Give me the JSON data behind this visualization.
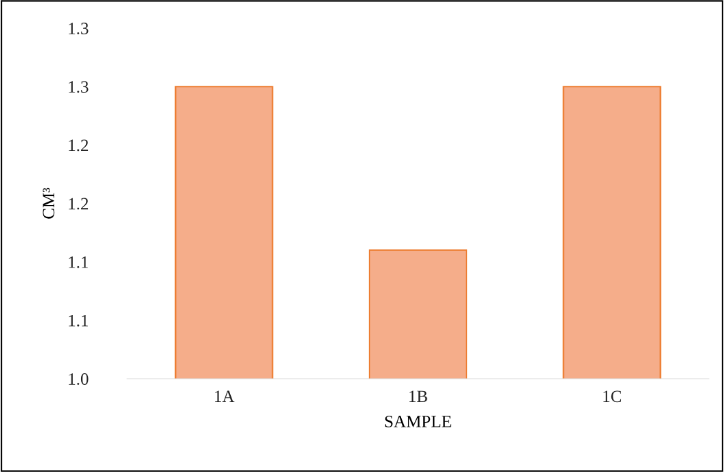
{
  "chart_data": {
    "type": "bar",
    "xlabel": "SAMPLE",
    "ylabel": "CM³",
    "categories": [
      "1A",
      "1B",
      "1C"
    ],
    "values": [
      1.25,
      1.11,
      1.25
    ],
    "color": "#f5ad8a",
    "ylim": [
      1.0,
      1.3
    ],
    "yticks": [
      {
        "value": 1.0,
        "label": "1.0"
      },
      {
        "value": 1.05,
        "label": "1.1"
      },
      {
        "value": 1.1,
        "label": "1.1"
      },
      {
        "value": 1.15,
        "label": "1.2"
      },
      {
        "value": 1.2,
        "label": "1.2"
      },
      {
        "value": 1.25,
        "label": "1.3"
      },
      {
        "value": 1.3,
        "label": "1.3"
      }
    ],
    "grid": false,
    "legend": false
  }
}
